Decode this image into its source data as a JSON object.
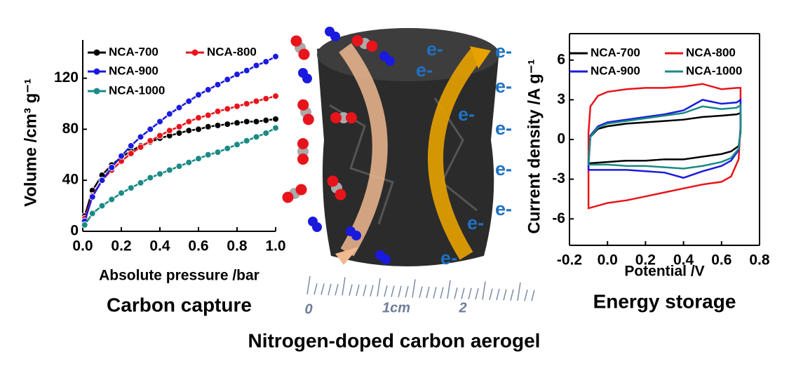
{
  "chart_data": [
    {
      "type": "line",
      "markers": true,
      "xlabel": "Absolute pressure /bar",
      "ylabel": "Volume /cm³ g⁻¹",
      "caption": "Carbon capture",
      "x": [
        0.01,
        0.05,
        0.1,
        0.15,
        0.2,
        0.25,
        0.3,
        0.35,
        0.4,
        0.45,
        0.5,
        0.55,
        0.6,
        0.65,
        0.7,
        0.75,
        0.8,
        0.85,
        0.9,
        0.95,
        1.0
      ],
      "series": [
        {
          "name": "NCA-700",
          "color": "#000000",
          "values": [
            12,
            32,
            44,
            52,
            58,
            63,
            67,
            70,
            73,
            75,
            77,
            79,
            80,
            82,
            83,
            84,
            85,
            86,
            86,
            87,
            88
          ]
        },
        {
          "name": "NCA-800",
          "color": "#e8141b",
          "values": [
            10,
            28,
            40,
            48,
            55,
            61,
            66,
            71,
            75,
            79,
            82,
            86,
            89,
            91,
            94,
            96,
            98,
            100,
            102,
            104,
            106
          ]
        },
        {
          "name": "NCA-900",
          "color": "#1a1adf",
          "values": [
            8,
            27,
            40,
            50,
            59,
            67,
            74,
            80,
            86,
            92,
            97,
            102,
            107,
            111,
            115,
            119,
            123,
            126,
            130,
            133,
            137
          ]
        },
        {
          "name": "NCA-1000",
          "color": "#1a8a85",
          "values": [
            5,
            14,
            20,
            25,
            30,
            34,
            38,
            42,
            45,
            48,
            51,
            54,
            57,
            60,
            62,
            65,
            68,
            71,
            74,
            77,
            81
          ]
        }
      ],
      "xlim": [
        0,
        1.0
      ],
      "ylim": [
        0,
        150
      ],
      "xticks": [
        {
          "value": 0,
          "label": "0.0"
        },
        0.2,
        0.4,
        0.6,
        0.8,
        {
          "value": 1,
          "label": "1.0"
        }
      ],
      "yticks": [
        0,
        40,
        80,
        120
      ]
    },
    {
      "type": "line",
      "markers": false,
      "frame": true,
      "xlabel": "Potential /V",
      "ylabel": "Current density /A g⁻¹",
      "caption": "Energy storage",
      "x": [
        -0.1,
        -0.09,
        -0.05,
        0,
        0.1,
        0.2,
        0.3,
        0.4,
        0.5,
        0.6,
        0.68,
        0.7,
        0.7,
        0.69,
        0.65,
        0.6,
        0.5,
        0.4,
        0.3,
        0.2,
        0.1,
        0,
        -0.1,
        -0.1
      ],
      "series": [
        {
          "name": "NCA-700",
          "color": "#000000",
          "values": [
            -1.5,
            0.2,
            0.8,
            1.0,
            1.2,
            1.3,
            1.4,
            1.5,
            1.7,
            1.8,
            1.9,
            2.0,
            0.5,
            -0.5,
            -0.9,
            -1.1,
            -1.3,
            -1.5,
            -1.5,
            -1.6,
            -1.6,
            -1.7,
            -1.8,
            -1.5
          ]
        },
        {
          "name": "NCA-800",
          "color": "#e8141b",
          "values": [
            0.5,
            2.5,
            3.3,
            3.6,
            3.8,
            3.9,
            3.9,
            4.0,
            4.2,
            3.8,
            3.9,
            3.9,
            1.0,
            -1.5,
            -2.8,
            -3.2,
            -3.4,
            -3.7,
            -4.0,
            -4.3,
            -4.6,
            -4.8,
            -5.2,
            0.5
          ]
        },
        {
          "name": "NCA-900",
          "color": "#1a1adf",
          "values": [
            -2.0,
            0.3,
            1.0,
            1.3,
            1.5,
            1.7,
            1.9,
            2.2,
            3.0,
            2.7,
            2.8,
            3.0,
            0.8,
            -0.8,
            -1.6,
            -2.0,
            -2.4,
            -2.9,
            -2.5,
            -2.4,
            -2.3,
            -2.3,
            -2.3,
            -2.0
          ]
        },
        {
          "name": "NCA-1000",
          "color": "#1a8a85",
          "values": [
            -1.8,
            0.2,
            0.9,
            1.2,
            1.4,
            1.6,
            1.8,
            2.0,
            2.5,
            2.3,
            2.4,
            2.6,
            0.6,
            -0.7,
            -1.4,
            -1.7,
            -2.0,
            -2.2,
            -2.1,
            -2.0,
            -2.0,
            -1.9,
            -1.9,
            -1.8
          ]
        }
      ],
      "xlim": [
        -0.2,
        0.8
      ],
      "ylim": [
        -8,
        8
      ],
      "xticks": [
        -0.2,
        {
          "value": 0,
          "label": "0.0"
        },
        0.2,
        0.4,
        0.6,
        0.8
      ],
      "yticks": [
        -6,
        -3,
        0,
        3,
        6
      ]
    }
  ],
  "figure_title": "Nitrogen-doped carbon aerogel",
  "illustration": {
    "electron_labels": [
      "e-",
      "e-",
      "e-",
      "e-",
      "e-",
      "e-",
      "e-",
      "e-",
      "e-",
      "e-"
    ],
    "ruler_labels": [
      "0",
      "1cm",
      "2"
    ]
  }
}
